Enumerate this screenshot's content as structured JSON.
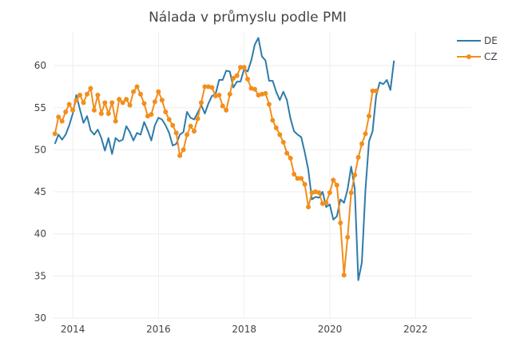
{
  "chart_data": {
    "type": "line",
    "title": "Nálada v průmyslu podle PMI",
    "xlabel": "",
    "ylabel": "",
    "xlim": [
      2013.55,
      2023.3
    ],
    "ylim": [
      30,
      64
    ],
    "x_ticks": [
      2014,
      2016,
      2018,
      2020,
      2022
    ],
    "x_tick_labels": [
      "2014",
      "2016",
      "2018",
      "2020",
      "2022"
    ],
    "y_ticks": [
      30,
      35,
      40,
      45,
      50,
      55,
      60
    ],
    "y_tick_labels": [
      "30",
      "35",
      "40",
      "45",
      "50",
      "55",
      "60"
    ],
    "grid": true,
    "legend": "top-right",
    "series": [
      {
        "name": "DE",
        "color": "#2e7bab",
        "markers": false,
        "start": 2013.583,
        "step": 0.0833,
        "values": [
          50.7,
          51.8,
          51.2,
          51.8,
          52.9,
          54.3,
          56.5,
          54.8,
          53.2,
          54.0,
          52.3,
          51.8,
          52.4,
          51.4,
          49.9,
          51.4,
          49.5,
          51.4,
          51.0,
          51.2,
          52.8,
          52.1,
          51.1,
          52.0,
          51.8,
          53.3,
          52.3,
          51.1,
          52.9,
          53.8,
          53.6,
          52.9,
          52.0,
          50.5,
          50.7,
          51.8,
          52.1,
          54.5,
          53.8,
          53.6,
          54.4,
          55.3,
          54.3,
          55.5,
          56.4,
          56.6,
          58.3,
          58.3,
          59.4,
          59.3,
          57.4,
          58.1,
          58.1,
          59.6,
          59.3,
          60.6,
          62.5,
          63.3,
          61.1,
          60.6,
          58.2,
          58.2,
          56.9,
          55.9,
          56.9,
          55.9,
          53.7,
          52.2,
          51.8,
          51.5,
          49.7,
          47.6,
          44.1,
          44.4,
          44.3,
          45.0,
          43.2,
          43.5,
          41.7,
          42.1,
          44.1,
          43.7,
          45.3,
          48.0,
          45.4,
          34.5,
          36.6,
          45.2,
          51.0,
          52.2,
          56.4,
          58.0,
          57.8,
          58.3,
          57.1,
          60.6
        ]
      },
      {
        "name": "CZ",
        "color": "#f28e1c",
        "markers": true,
        "start": 2013.583,
        "step": 0.0833,
        "values": [
          51.9,
          53.9,
          53.4,
          54.5,
          55.4,
          54.7,
          55.9,
          56.5,
          55.6,
          56.6,
          57.3,
          54.7,
          56.5,
          54.3,
          55.6,
          54.3,
          55.6,
          53.4,
          56.0,
          55.6,
          56.0,
          55.3,
          56.9,
          57.5,
          56.6,
          55.5,
          54.0,
          54.2,
          55.7,
          56.9,
          55.9,
          54.5,
          53.6,
          52.9,
          52.0,
          49.3,
          50.0,
          51.8,
          52.8,
          52.2,
          53.7,
          55.6,
          57.5,
          57.5,
          57.4,
          56.4,
          56.5,
          55.2,
          54.7,
          56.6,
          58.5,
          58.8,
          59.8,
          59.8,
          58.4,
          57.3,
          57.2,
          56.5,
          56.6,
          56.7,
          55.4,
          53.5,
          52.6,
          51.8,
          50.9,
          49.6,
          49.0,
          47.1,
          46.6,
          46.6,
          45.9,
          43.2,
          44.9,
          45.0,
          44.9,
          43.6,
          43.7,
          44.9,
          46.4,
          45.8,
          41.3,
          35.1,
          39.6,
          44.9,
          47.0,
          49.1,
          50.7,
          51.9,
          54.0,
          57.0,
          57.0
        ]
      }
    ]
  }
}
